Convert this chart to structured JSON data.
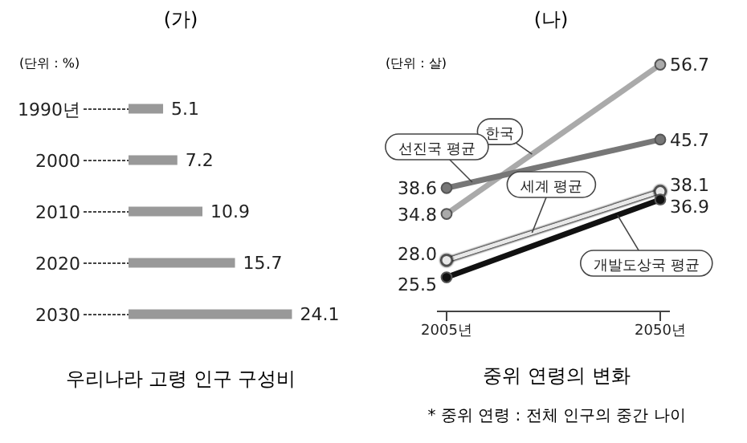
{
  "chart_data": [
    {
      "type": "bar",
      "title": "(가)",
      "orientation": "horizontal",
      "categories": [
        "1990년",
        "2000",
        "2010",
        "2020",
        "2030"
      ],
      "values": [
        5.1,
        7.2,
        10.9,
        15.7,
        24.1
      ],
      "color": "#999999",
      "data_labels": true,
      "xlabel": "우리나라 고령 인구 구성비",
      "annotations": [
        "(단위 : %)"
      ],
      "tick_labels": "y"
    },
    {
      "type": "line",
      "title": "(나)",
      "categories": [
        "2005년",
        "2050년"
      ],
      "marker": "circle",
      "tick_labels": "x",
      "xlabel": "중위 연령의 변화",
      "annotations": [
        "(단위 : 살)",
        "* 중위 연령 : 전체 인구의 중간 나이"
      ],
      "series": [
        {
          "name": "한국",
          "color": "#aaaaaa",
          "values": [
            34.8,
            56.7
          ],
          "value_labels": [
            "34.8",
            "56.7"
          ]
        },
        {
          "name": "선진국 평균",
          "color": "#777777",
          "values": [
            38.6,
            45.7
          ],
          "value_labels": [
            "38.6",
            "45.7"
          ]
        },
        {
          "name": "세계 평균",
          "color": "#e8e8e8",
          "values": [
            28.0,
            38.1
          ],
          "value_labels": [
            "28.0",
            "38.1"
          ]
        },
        {
          "name": "개발도상국 평균",
          "color": "#111111",
          "values": [
            25.5,
            36.9
          ],
          "value_labels": [
            "25.5",
            "36.9"
          ]
        }
      ]
    }
  ]
}
